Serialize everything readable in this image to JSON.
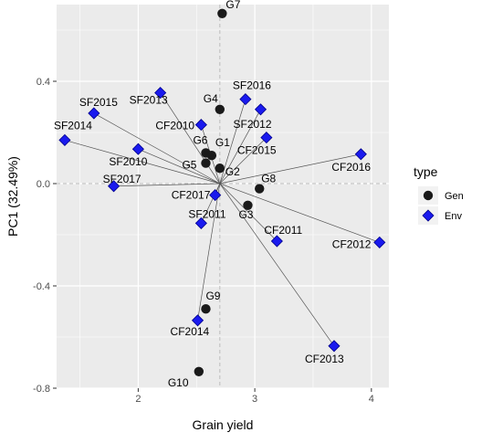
{
  "chart_data": {
    "type": "scatter",
    "title": "",
    "xlabel": "Grain yield",
    "ylabel": "PC1 (32.49%)",
    "xlim": [
      1.3,
      4.15
    ],
    "ylim": [
      -0.8,
      0.7
    ],
    "x_ticks": [
      2,
      3,
      4
    ],
    "y_ticks": [
      -0.8,
      -0.4,
      0.0,
      0.4
    ],
    "y_tick_labels": [
      "-0.8",
      "-0.4",
      "0.0",
      "0.4"
    ],
    "grid": true,
    "reference_lines": {
      "x": 2.7,
      "y": 0.0,
      "style": "dashed"
    },
    "legend": {
      "title": "type",
      "placement": "right",
      "entries": [
        {
          "name": "Gen",
          "shape": "circle",
          "color": "#000000"
        },
        {
          "name": "Env",
          "shape": "diamond",
          "color": "#0000ff"
        }
      ]
    },
    "origin": {
      "x": 2.7,
      "y": 0.0
    },
    "series": [
      {
        "name": "Gen",
        "points": [
          {
            "label": "G1",
            "x": 2.63,
            "y": 0.11
          },
          {
            "label": "G2",
            "x": 2.7,
            "y": 0.06
          },
          {
            "label": "G3",
            "x": 2.94,
            "y": -0.085
          },
          {
            "label": "G4",
            "x": 2.7,
            "y": 0.29
          },
          {
            "label": "G5",
            "x": 2.58,
            "y": 0.08
          },
          {
            "label": "G6",
            "x": 2.58,
            "y": 0.12
          },
          {
            "label": "G7",
            "x": 2.72,
            "y": 0.665
          },
          {
            "label": "G8",
            "x": 3.04,
            "y": -0.02
          },
          {
            "label": "G9",
            "x": 2.58,
            "y": -0.49
          },
          {
            "label": "G10",
            "x": 2.52,
            "y": -0.735
          }
        ]
      },
      {
        "name": "Env",
        "points": [
          {
            "label": "SF2015",
            "x": 1.62,
            "y": 0.275
          },
          {
            "label": "SF2013",
            "x": 2.19,
            "y": 0.355
          },
          {
            "label": "SF2016",
            "x": 2.92,
            "y": 0.33
          },
          {
            "label": "CF2010",
            "x": 2.54,
            "y": 0.23
          },
          {
            "label": "SF2012",
            "x": 3.05,
            "y": 0.29
          },
          {
            "label": "SF2014",
            "x": 1.37,
            "y": 0.17
          },
          {
            "label": "CF2015",
            "x": 3.1,
            "y": 0.18
          },
          {
            "label": "SF2010",
            "x": 2.0,
            "y": 0.135
          },
          {
            "label": "CF2016",
            "x": 3.91,
            "y": 0.115
          },
          {
            "label": "SF2017",
            "x": 1.79,
            "y": -0.01
          },
          {
            "label": "CF2017",
            "x": 2.66,
            "y": -0.045
          },
          {
            "label": "SF2011",
            "x": 2.54,
            "y": -0.155
          },
          {
            "label": "CF2011",
            "x": 3.19,
            "y": -0.225
          },
          {
            "label": "CF2012",
            "x": 4.07,
            "y": -0.23
          },
          {
            "label": "CF2014",
            "x": 2.51,
            "y": -0.535
          },
          {
            "label": "CF2013",
            "x": 3.68,
            "y": -0.635
          }
        ]
      }
    ]
  }
}
